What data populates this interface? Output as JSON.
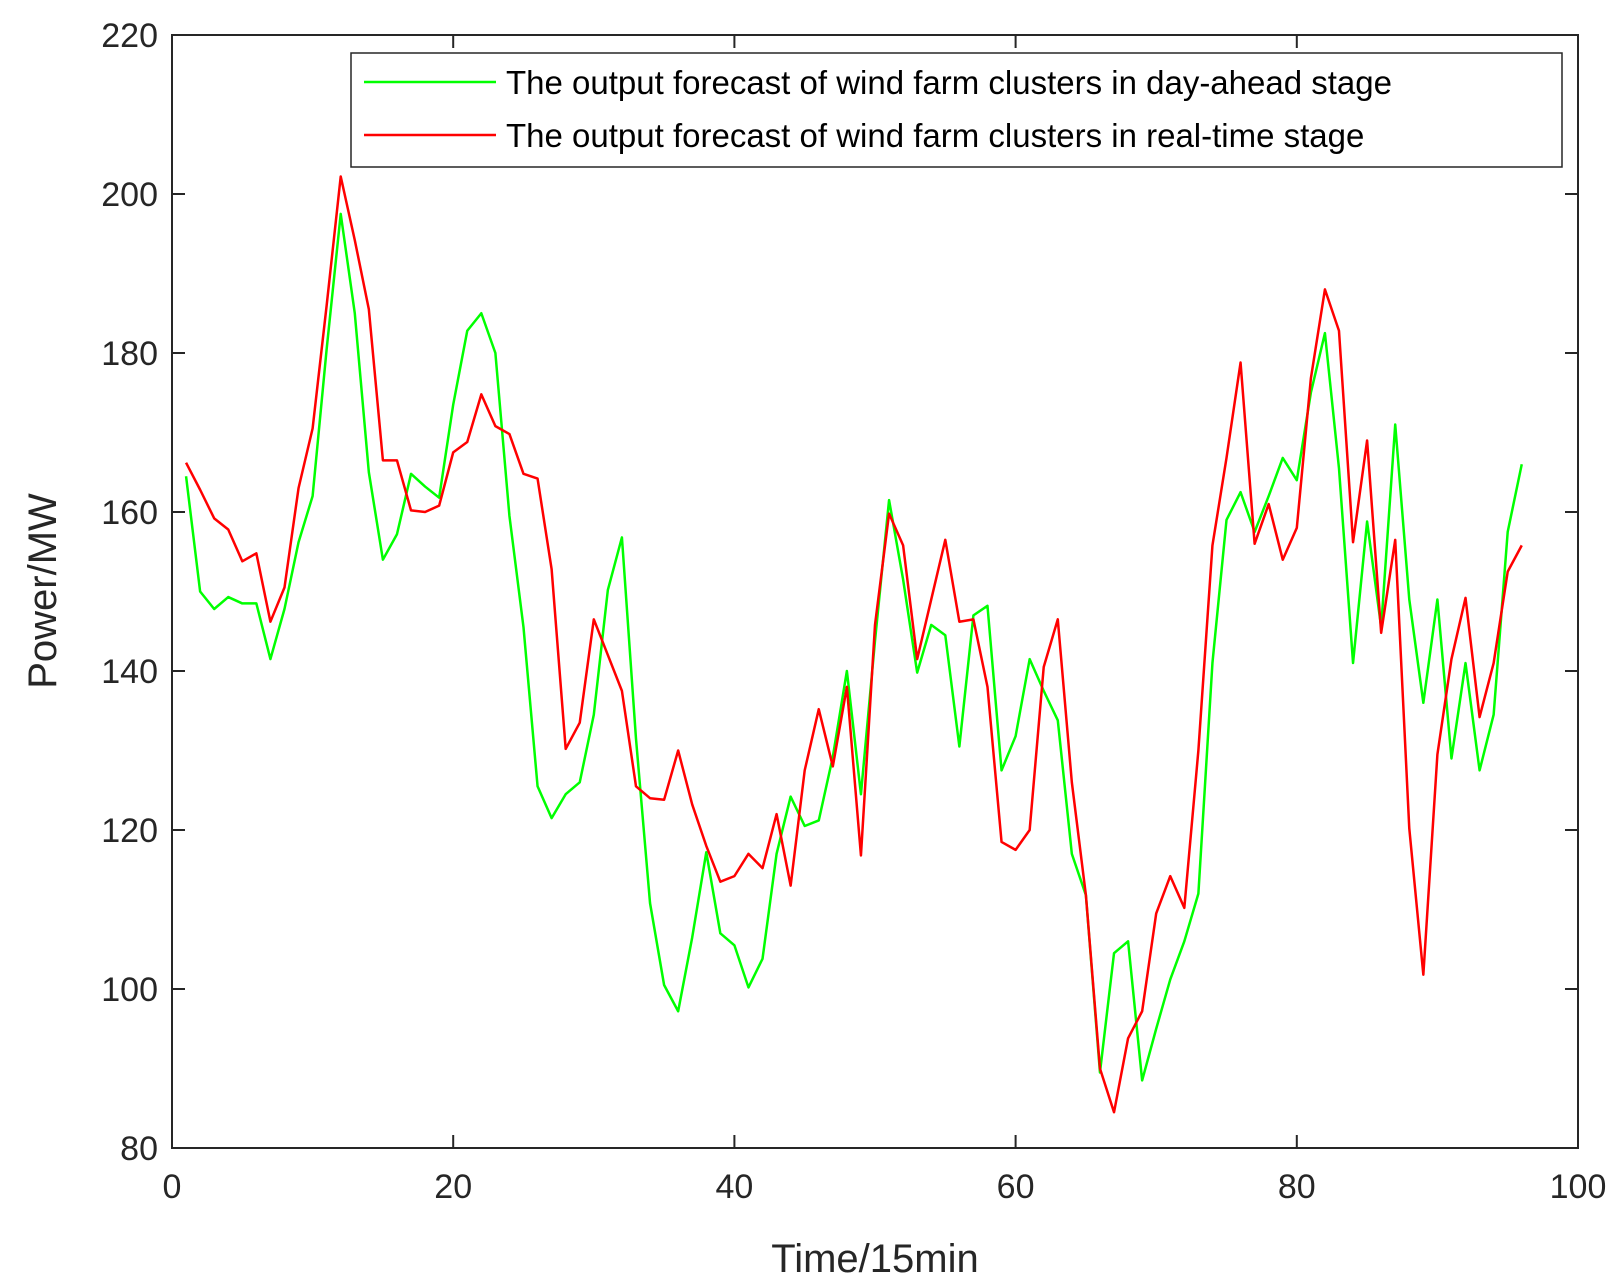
{
  "chart_data": {
    "type": "line",
    "title": "",
    "xlabel": "Time/15min",
    "ylabel": "Power/MW",
    "xlim": [
      0,
      100
    ],
    "ylim": [
      80,
      220
    ],
    "xticks": [
      0,
      20,
      40,
      60,
      80,
      100
    ],
    "yticks": [
      80,
      100,
      120,
      140,
      160,
      180,
      200,
      220
    ],
    "grid": false,
    "legend_position": "top-right",
    "x": [
      1,
      2,
      3,
      4,
      5,
      6,
      7,
      8,
      9,
      10,
      11,
      12,
      13,
      14,
      15,
      16,
      17,
      18,
      19,
      20,
      21,
      22,
      23,
      24,
      25,
      26,
      27,
      28,
      29,
      30,
      31,
      32,
      33,
      34,
      35,
      36,
      37,
      38,
      39,
      40,
      41,
      42,
      43,
      44,
      45,
      46,
      47,
      48,
      49,
      50,
      51,
      52,
      53,
      54,
      55,
      56,
      57,
      58,
      59,
      60,
      61,
      62,
      63,
      64,
      65,
      66,
      67,
      68,
      69,
      70,
      71,
      72,
      73,
      74,
      75,
      76,
      77,
      78,
      79,
      80,
      81,
      82,
      83,
      84,
      85,
      86,
      87,
      88,
      89,
      90,
      91,
      92,
      93,
      94,
      95,
      96
    ],
    "series": [
      {
        "name": "The output forecast of wind farm clusters in day-ahead stage",
        "color": "#00ff00",
        "values": [
          164.5,
          150,
          147.8,
          149.3,
          148.5,
          148.5,
          141.5,
          147.8,
          156.2,
          162,
          180.5,
          197.5,
          185,
          165,
          154,
          157.2,
          164.8,
          163.2,
          161.8,
          173.5,
          182.8,
          185,
          180,
          159.5,
          145.5,
          125.5,
          121.5,
          124.5,
          126,
          134.5,
          150.2,
          156.8,
          131.5,
          110.8,
          100.5,
          97.2,
          106.5,
          117.2,
          107,
          105.5,
          100.2,
          103.8,
          117,
          124.2,
          120.5,
          121.2,
          129.2,
          140,
          124.5,
          143.8,
          161.5,
          151.5,
          139.8,
          145.8,
          144.5,
          130.5,
          147,
          148.2,
          127.5,
          131.8,
          141.5,
          137.5,
          133.8,
          117,
          111.8,
          89.5,
          104.5,
          106,
          88.5,
          95,
          101.2,
          106,
          112,
          141,
          159,
          162.5,
          157.5,
          162,
          166.8,
          164,
          175,
          182.5,
          165.5,
          141,
          158.8,
          145.5,
          171,
          149,
          136,
          149,
          129,
          141,
          127.5,
          134.5,
          157.5,
          166
        ]
      },
      {
        "name": "The output forecast of wind farm clusters in real-time stage",
        "color": "#ff0000",
        "values": [
          166.2,
          162.8,
          159.2,
          157.8,
          153.8,
          154.8,
          146.2,
          150.5,
          163,
          170.5,
          186,
          202.2,
          194.2,
          185.5,
          166.5,
          166.5,
          160.2,
          160,
          160.8,
          167.5,
          168.8,
          174.8,
          170.8,
          169.8,
          164.8,
          164.2,
          152.8,
          130.2,
          133.5,
          146.5,
          142,
          137.5,
          125.5,
          124,
          123.8,
          130,
          123.2,
          118,
          113.5,
          114.2,
          117,
          115.2,
          122,
          113,
          127.5,
          135.2,
          128,
          138,
          116.8,
          145.8,
          159.8,
          155.8,
          141.5,
          149,
          156.5,
          146.2,
          146.5,
          138,
          118.5,
          117.5,
          120,
          140.5,
          146.5,
          126,
          111.8,
          90,
          84.5,
          93.8,
          97.2,
          109.5,
          114.2,
          110.2,
          130,
          155.8,
          166.8,
          178.8,
          156,
          161,
          154,
          158,
          176.8,
          188,
          182.8,
          156.2,
          169,
          144.8,
          156.5,
          120.2,
          101.8,
          129.5,
          141.5,
          149.2,
          134.2,
          141,
          152.5,
          155.8
        ]
      }
    ]
  }
}
